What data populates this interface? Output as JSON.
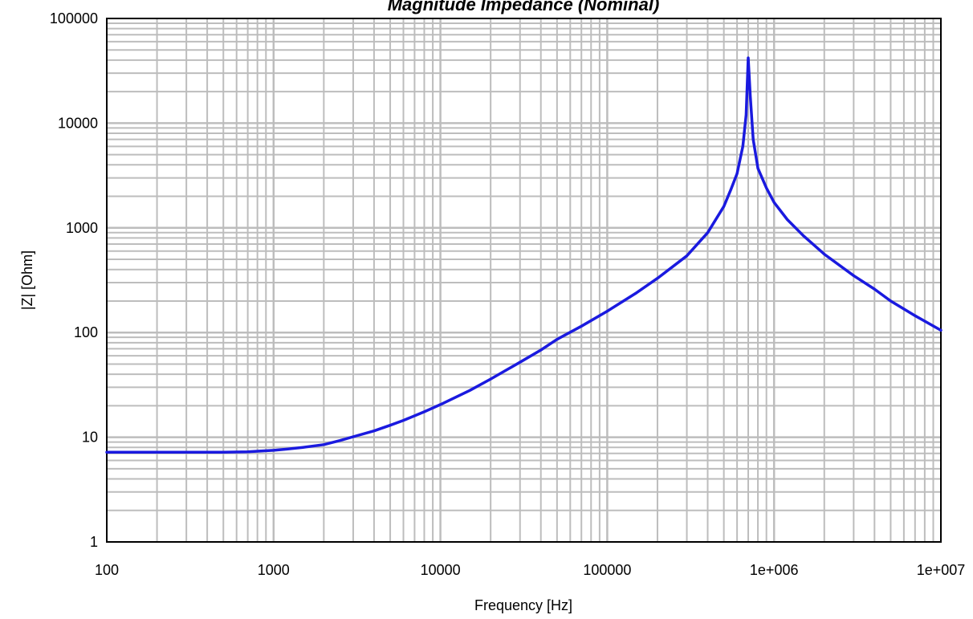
{
  "chart_data": {
    "type": "line",
    "title": "Magnitude Impedance (Nominal)",
    "xlabel": "Frequency [Hz]",
    "ylabel": "|Z| [Ohm]",
    "x_scale": "log",
    "y_scale": "log",
    "xlim": [
      100,
      10000000
    ],
    "ylim": [
      1,
      100000
    ],
    "x_tick_labels": [
      "100",
      "1000",
      "10000",
      "100000",
      "1e+006",
      "1e+007"
    ],
    "y_tick_labels": [
      "1",
      "10",
      "100",
      "1000",
      "10000",
      "100000"
    ],
    "x_ticks": [
      100,
      1000,
      10000,
      100000,
      1000000,
      10000000
    ],
    "y_ticks": [
      1,
      10,
      100,
      1000,
      10000,
      100000
    ],
    "grid": true,
    "legend": "none",
    "colors": {
      "line": "#1a1adf",
      "grid": "#bdbdbd",
      "frame": "#000000"
    },
    "series": [
      {
        "x": [
          100,
          200,
          300,
          500,
          700,
          800,
          1000,
          1200,
          1500,
          2000,
          2500,
          3000,
          4000,
          5000,
          6000,
          8000,
          10000,
          15000,
          20000,
          30000,
          40000,
          50000,
          70000,
          100000,
          150000,
          200000,
          300000,
          400000,
          500000,
          550000,
          600000,
          650000,
          680000,
          700000,
          720000,
          750000,
          800000,
          900000,
          1000000,
          1200000,
          1500000,
          2000000,
          3000000,
          4000000,
          5000000,
          7000000,
          10000000
        ],
        "values": [
          7.2,
          7.2,
          7.2,
          7.2,
          7.25,
          7.35,
          7.5,
          7.7,
          8.0,
          8.5,
          9.3,
          10.1,
          11.5,
          13.0,
          14.5,
          17.5,
          20.5,
          28,
          36,
          52,
          68,
          86,
          115,
          160,
          240,
          330,
          540,
          900,
          1600,
          2300,
          3300,
          6000,
          12000,
          42000,
          18000,
          7000,
          3700,
          2400,
          1750,
          1200,
          840,
          560,
          350,
          260,
          200,
          145,
          105
        ]
      }
    ]
  }
}
